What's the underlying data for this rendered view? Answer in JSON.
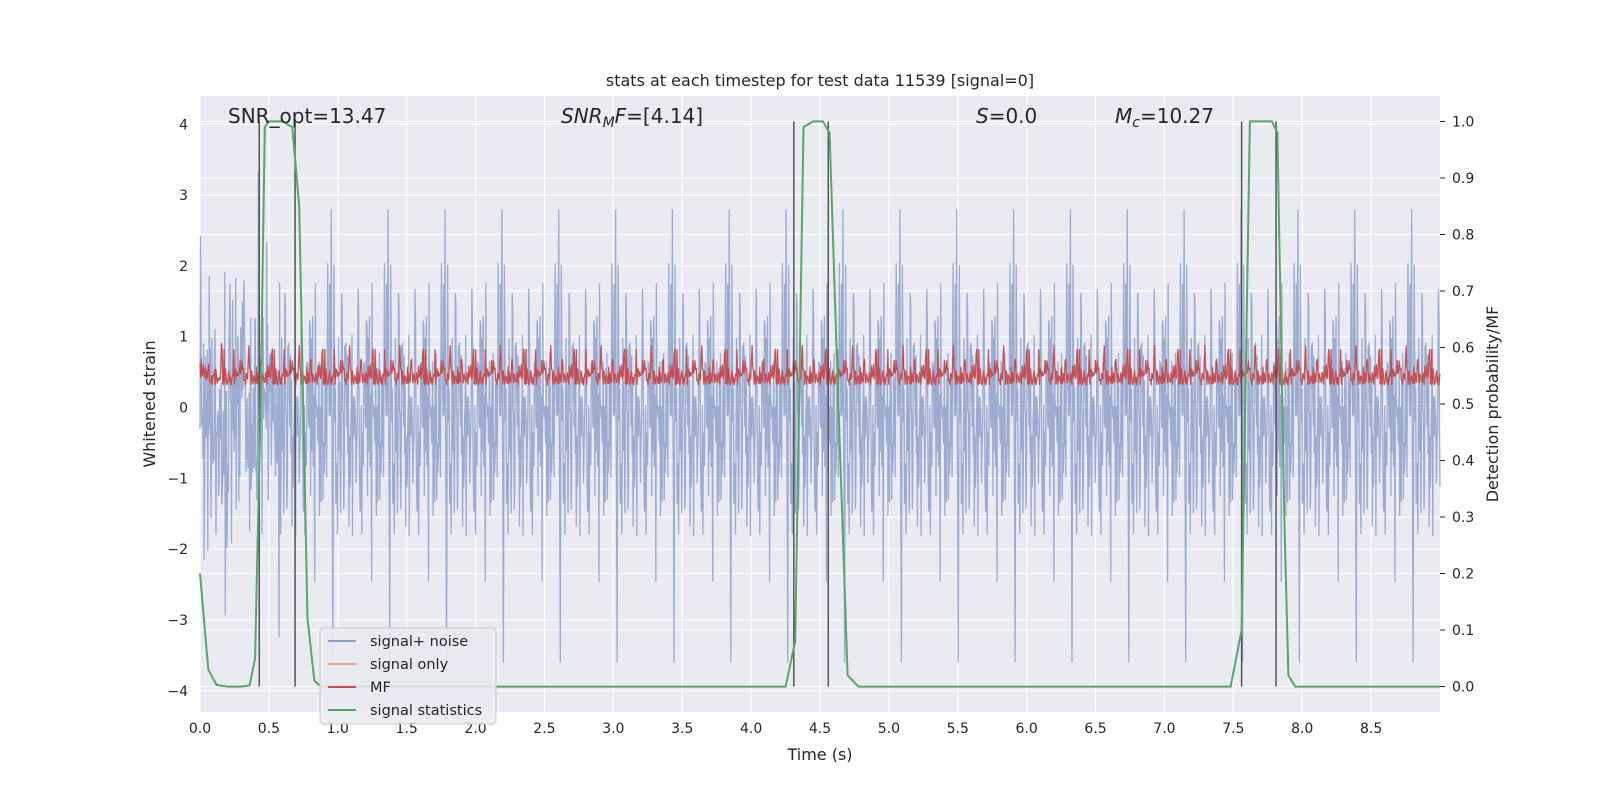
{
  "chart_data": {
    "type": "line",
    "title": "stats at each timestep for test data 11539 [signal=0]",
    "xlabel": "Time (s)",
    "ylabel": "Whitened strain",
    "ylabel_right": "Detection probability/MF",
    "xlim": [
      0.0,
      9.0
    ],
    "ylim": [
      -4.3,
      4.4
    ],
    "ylim_right": [
      -0.045,
      1.045
    ],
    "x_ticks": [
      "0.0",
      "0.5",
      "1.0",
      "1.5",
      "2.0",
      "2.5",
      "3.0",
      "3.5",
      "4.0",
      "4.5",
      "5.0",
      "5.5",
      "6.0",
      "6.5",
      "7.0",
      "7.5",
      "8.0",
      "8.5"
    ],
    "y_ticks": [
      "4",
      "3",
      "2",
      "1",
      "0",
      "−1",
      "−2",
      "−3",
      "−4"
    ],
    "y_tick_values": [
      4,
      3,
      2,
      1,
      0,
      -1,
      -2,
      -3,
      -4
    ],
    "y_right_ticks": [
      "1.0",
      "0.9",
      "0.8",
      "0.7",
      "0.6",
      "0.5",
      "0.4",
      "0.3",
      "0.2",
      "0.1",
      "0.0"
    ],
    "y_right_tick_values": [
      1.0,
      0.9,
      0.8,
      0.7,
      0.6,
      0.5,
      0.4,
      0.3,
      0.2,
      0.1,
      0.0
    ],
    "annotations": {
      "snr_opt": "SNR_opt=13.47",
      "snr_mf_prefix": "SNR",
      "snr_mf_sub": "M",
      "snr_mf_mid": "F",
      "snr_mf_value": "=[4.14]",
      "s_sym": "S",
      "s_value": "=0.0",
      "mc_sym": "M",
      "mc_sub": "c",
      "mc_value": "=10.27"
    },
    "series": [
      {
        "name": "signal+ noise",
        "color": "#8da0cb",
        "axis": "left",
        "description": "whitened noise, amplitude roughly within -3.6 to 3.8"
      },
      {
        "name": "signal only",
        "color": "#e8a488",
        "axis": "left",
        "values": []
      },
      {
        "name": "MF",
        "color": "#c44e52",
        "axis": "right",
        "description": "matched filter output around 0.5-0.6"
      },
      {
        "name": "signal statistics",
        "color": "#55a868",
        "axis": "right",
        "x": [
          0.0,
          0.06,
          0.12,
          0.2,
          0.3,
          0.36,
          0.4,
          0.44,
          0.47,
          0.5,
          0.6,
          0.67,
          0.72,
          0.78,
          0.83,
          0.88,
          0.95,
          1.1,
          4.0,
          4.25,
          4.32,
          4.38,
          4.45,
          4.52,
          4.57,
          4.62,
          4.7,
          4.78,
          7.0,
          7.48,
          7.56,
          7.62,
          7.72,
          7.78,
          7.82,
          7.87,
          7.9,
          7.95,
          8.5,
          9.0
        ],
        "y": [
          0.2,
          0.03,
          0.003,
          0.0,
          0.0,
          0.002,
          0.05,
          0.5,
          0.99,
          1.0,
          1.0,
          0.99,
          0.85,
          0.12,
          0.01,
          0.0,
          0.0,
          0.0,
          0.0,
          0.0,
          0.08,
          0.99,
          1.0,
          1.0,
          0.98,
          0.6,
          0.02,
          0.0,
          0.0,
          0.0,
          0.1,
          1.0,
          1.0,
          1.0,
          0.98,
          0.3,
          0.02,
          0.0,
          0.0,
          0.0
        ]
      }
    ],
    "vertical_lines": [
      0.43,
      0.69,
      4.31,
      4.56,
      7.56,
      7.81
    ],
    "legend": [
      "signal+ noise",
      "signal only",
      "MF",
      "signal statistics"
    ],
    "legend_position": "lower-left",
    "grid": true
  },
  "colors": {
    "background": "#eaeaf2",
    "grid": "#ffffff",
    "noise": "#8da0cb",
    "signal_only": "#e8a488",
    "mf": "#c44e52",
    "stats": "#55a868",
    "vline": "#4c4c4c"
  }
}
